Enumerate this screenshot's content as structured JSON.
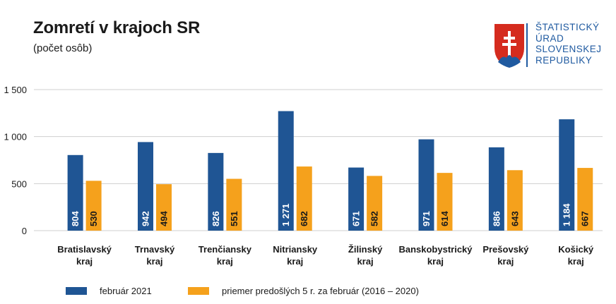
{
  "chart_data": {
    "type": "bar",
    "title": "Zomretí v krajoch SR",
    "subtitle": "(počet osôb)",
    "categories": [
      [
        "Bratislavský",
        "kraj"
      ],
      [
        "Trnavský",
        "kraj"
      ],
      [
        "Trenčiansky",
        "kraj"
      ],
      [
        "Nitriansky",
        "kraj"
      ],
      [
        "Žilinský",
        "kraj"
      ],
      [
        "Banskobystrický",
        "kraj"
      ],
      [
        "Prešovský",
        "kraj"
      ],
      [
        "Košický",
        "kraj"
      ]
    ],
    "series": [
      {
        "name": "február 2021",
        "color": "#1f5594",
        "values": [
          804,
          942,
          826,
          1271,
          671,
          971,
          886,
          1184
        ],
        "labels": [
          "804",
          "942",
          "826",
          "1 271",
          "671",
          "971",
          "886",
          "1 184"
        ]
      },
      {
        "name": "priemer predošlých 5 r. za február (2016 – 2020)",
        "color": "#f5a11c",
        "values": [
          530,
          494,
          551,
          682,
          582,
          614,
          643,
          667
        ],
        "labels": [
          "530",
          "494",
          "551",
          "682",
          "582",
          "614",
          "643",
          "667"
        ]
      }
    ],
    "yticks": [
      0,
      500,
      1000,
      1500
    ],
    "ytick_labels": [
      "0",
      "500",
      "1 000",
      "1 500"
    ],
    "ylim": [
      0,
      1500
    ],
    "grid": true,
    "legend_position": "bottom"
  },
  "logo": {
    "lines": [
      "ŠTATISTICKÝ",
      "ÚRAD",
      "SLOVENSKEJ",
      "REPUBLIKY"
    ],
    "color": "#1f5aa0"
  }
}
